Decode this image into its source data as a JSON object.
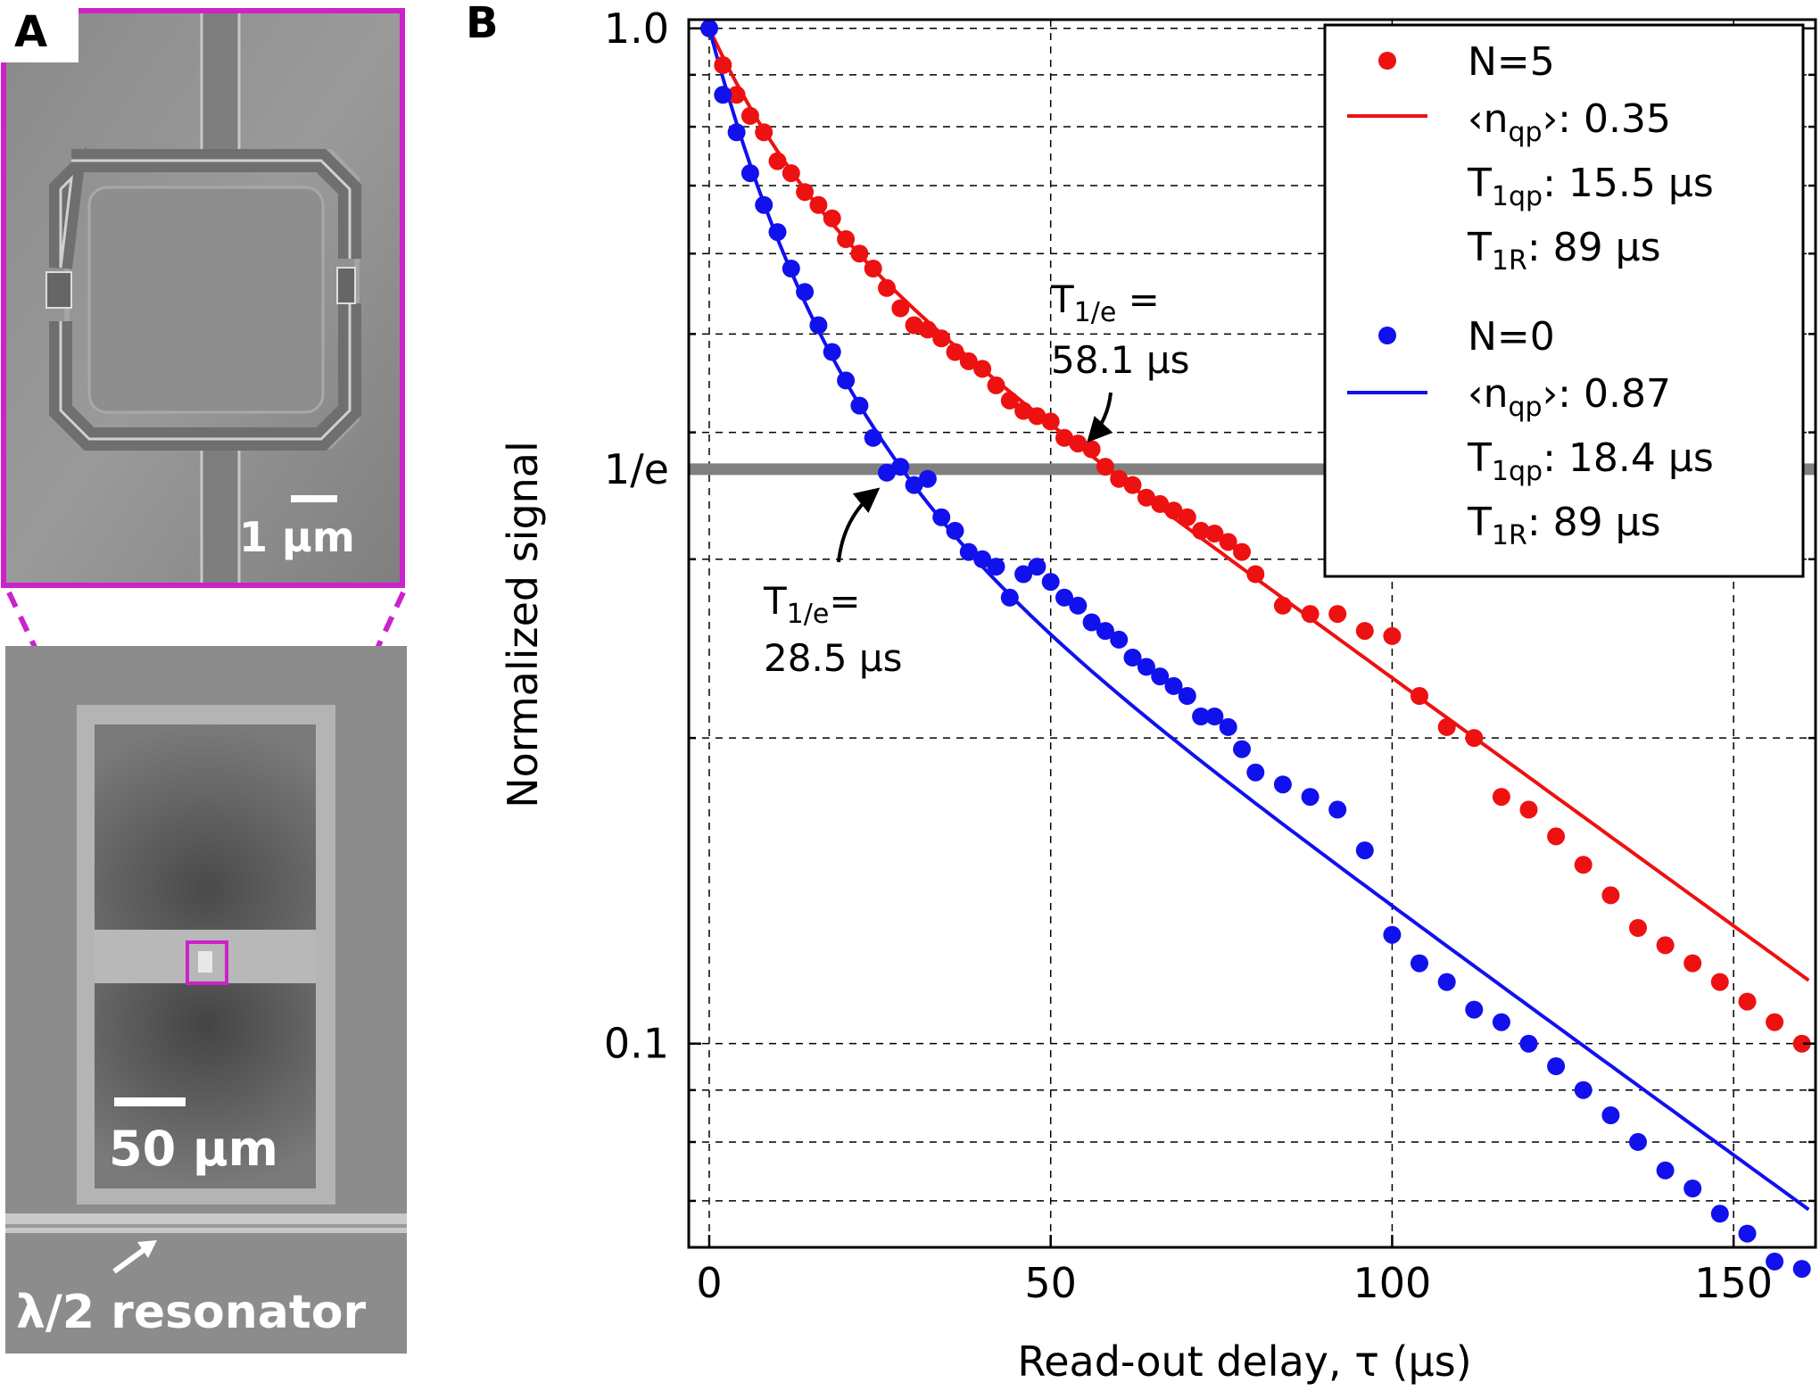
{
  "panel_a": {
    "label": "A",
    "scale_top": "1 μm",
    "scale_bottom": "50 μm",
    "resonator_label": "λ/2 resonator",
    "accent_color": "#cc22cc"
  },
  "chart_data": {
    "type": "scatter",
    "panel_label": "B",
    "xlabel": "Read-out delay, τ (μs)",
    "ylabel": "Normalized signal",
    "xlim": [
      -3,
      162
    ],
    "ylim": [
      0.063,
      1.02
    ],
    "yscale": "log",
    "grid": true,
    "xticks": [
      0,
      50,
      100,
      150
    ],
    "xtick_labels": [
      "0",
      "50",
      "100",
      "150"
    ],
    "yticks": [
      1.0,
      0.3679,
      0.1
    ],
    "ytick_labels": [
      "1.0",
      "1/e",
      "0.1"
    ],
    "hline": {
      "y": 0.3679,
      "color": "#808080"
    },
    "series": [
      {
        "name": "N=5",
        "color": "#ee1111",
        "x": [
          2,
          4,
          6,
          8,
          10,
          12,
          14,
          16,
          18,
          20,
          22,
          24,
          26,
          28,
          30,
          32,
          34,
          36,
          38,
          40,
          42,
          44,
          46,
          48,
          50,
          52,
          54,
          56,
          58,
          60,
          62,
          64,
          66,
          68,
          70,
          72,
          74,
          76,
          78,
          80,
          84,
          88,
          92,
          96,
          100,
          104,
          108,
          112,
          116,
          120,
          124,
          128,
          132,
          136,
          140,
          144,
          148,
          152,
          156,
          160
        ],
        "y": [
          0.92,
          0.86,
          0.82,
          0.79,
          0.74,
          0.72,
          0.69,
          0.67,
          0.65,
          0.62,
          0.6,
          0.58,
          0.555,
          0.53,
          0.51,
          0.505,
          0.495,
          0.48,
          0.47,
          0.462,
          0.445,
          0.43,
          0.42,
          0.415,
          0.41,
          0.395,
          0.39,
          0.385,
          0.37,
          0.36,
          0.355,
          0.345,
          0.34,
          0.335,
          0.33,
          0.32,
          0.318,
          0.312,
          0.305,
          0.29,
          0.27,
          0.265,
          0.265,
          0.255,
          0.252,
          0.22,
          0.205,
          0.2,
          0.175,
          0.17,
          0.16,
          0.15,
          0.14,
          0.13,
          0.125,
          0.12,
          0.115,
          0.11,
          0.105,
          0.1
        ],
        "fit": {
          "n_qp": 0.35,
          "T1qp": 15.5,
          "T1R": 89
        },
        "legend_lines": [
          "N=5",
          "‹n_qp›: 0.35",
          "T_1qp: 15.5 μs",
          "T_1R: 89 μs"
        ]
      },
      {
        "name": "N=0",
        "color": "#1111ee",
        "x": [
          0,
          2,
          4,
          6,
          8,
          10,
          12,
          14,
          16,
          18,
          20,
          22,
          24,
          26,
          28,
          30,
          32,
          34,
          36,
          38,
          40,
          42,
          44,
          46,
          48,
          50,
          52,
          54,
          56,
          58,
          60,
          62,
          64,
          66,
          68,
          70,
          72,
          74,
          76,
          78,
          80,
          84,
          88,
          92,
          96,
          100,
          104,
          108,
          112,
          116,
          120,
          124,
          128,
          132,
          136,
          140,
          144,
          148,
          152,
          156,
          160
        ],
        "y": [
          1.0,
          0.86,
          0.79,
          0.72,
          0.67,
          0.63,
          0.58,
          0.55,
          0.51,
          0.48,
          0.45,
          0.425,
          0.395,
          0.365,
          0.37,
          0.355,
          0.36,
          0.33,
          0.32,
          0.305,
          0.3,
          0.295,
          0.275,
          0.29,
          0.295,
          0.285,
          0.275,
          0.27,
          0.26,
          0.255,
          0.25,
          0.24,
          0.235,
          0.23,
          0.225,
          0.22,
          0.21,
          0.21,
          0.205,
          0.195,
          0.185,
          0.18,
          0.175,
          0.17,
          0.155,
          0.128,
          0.12,
          0.115,
          0.108,
          0.105,
          0.1,
          0.095,
          0.09,
          0.085,
          0.08,
          0.075,
          0.072,
          0.068,
          0.065,
          0.061,
          0.06
        ],
        "fit": {
          "n_qp": 0.87,
          "T1qp": 18.4,
          "T1R": 89
        },
        "legend_lines": [
          "N=0",
          "‹n_qp›: 0.87",
          "T_1qp: 18.4 μs",
          "T_1R: 89 μs"
        ]
      }
    ],
    "annotations": [
      {
        "line1": "T_1/e =",
        "line2": "58.1 μs",
        "x": 58.1,
        "series": "N=5"
      },
      {
        "line1": "T_1/e=",
        "line2": "28.5 μs",
        "x": 28.5,
        "series": "N=0"
      }
    ]
  }
}
